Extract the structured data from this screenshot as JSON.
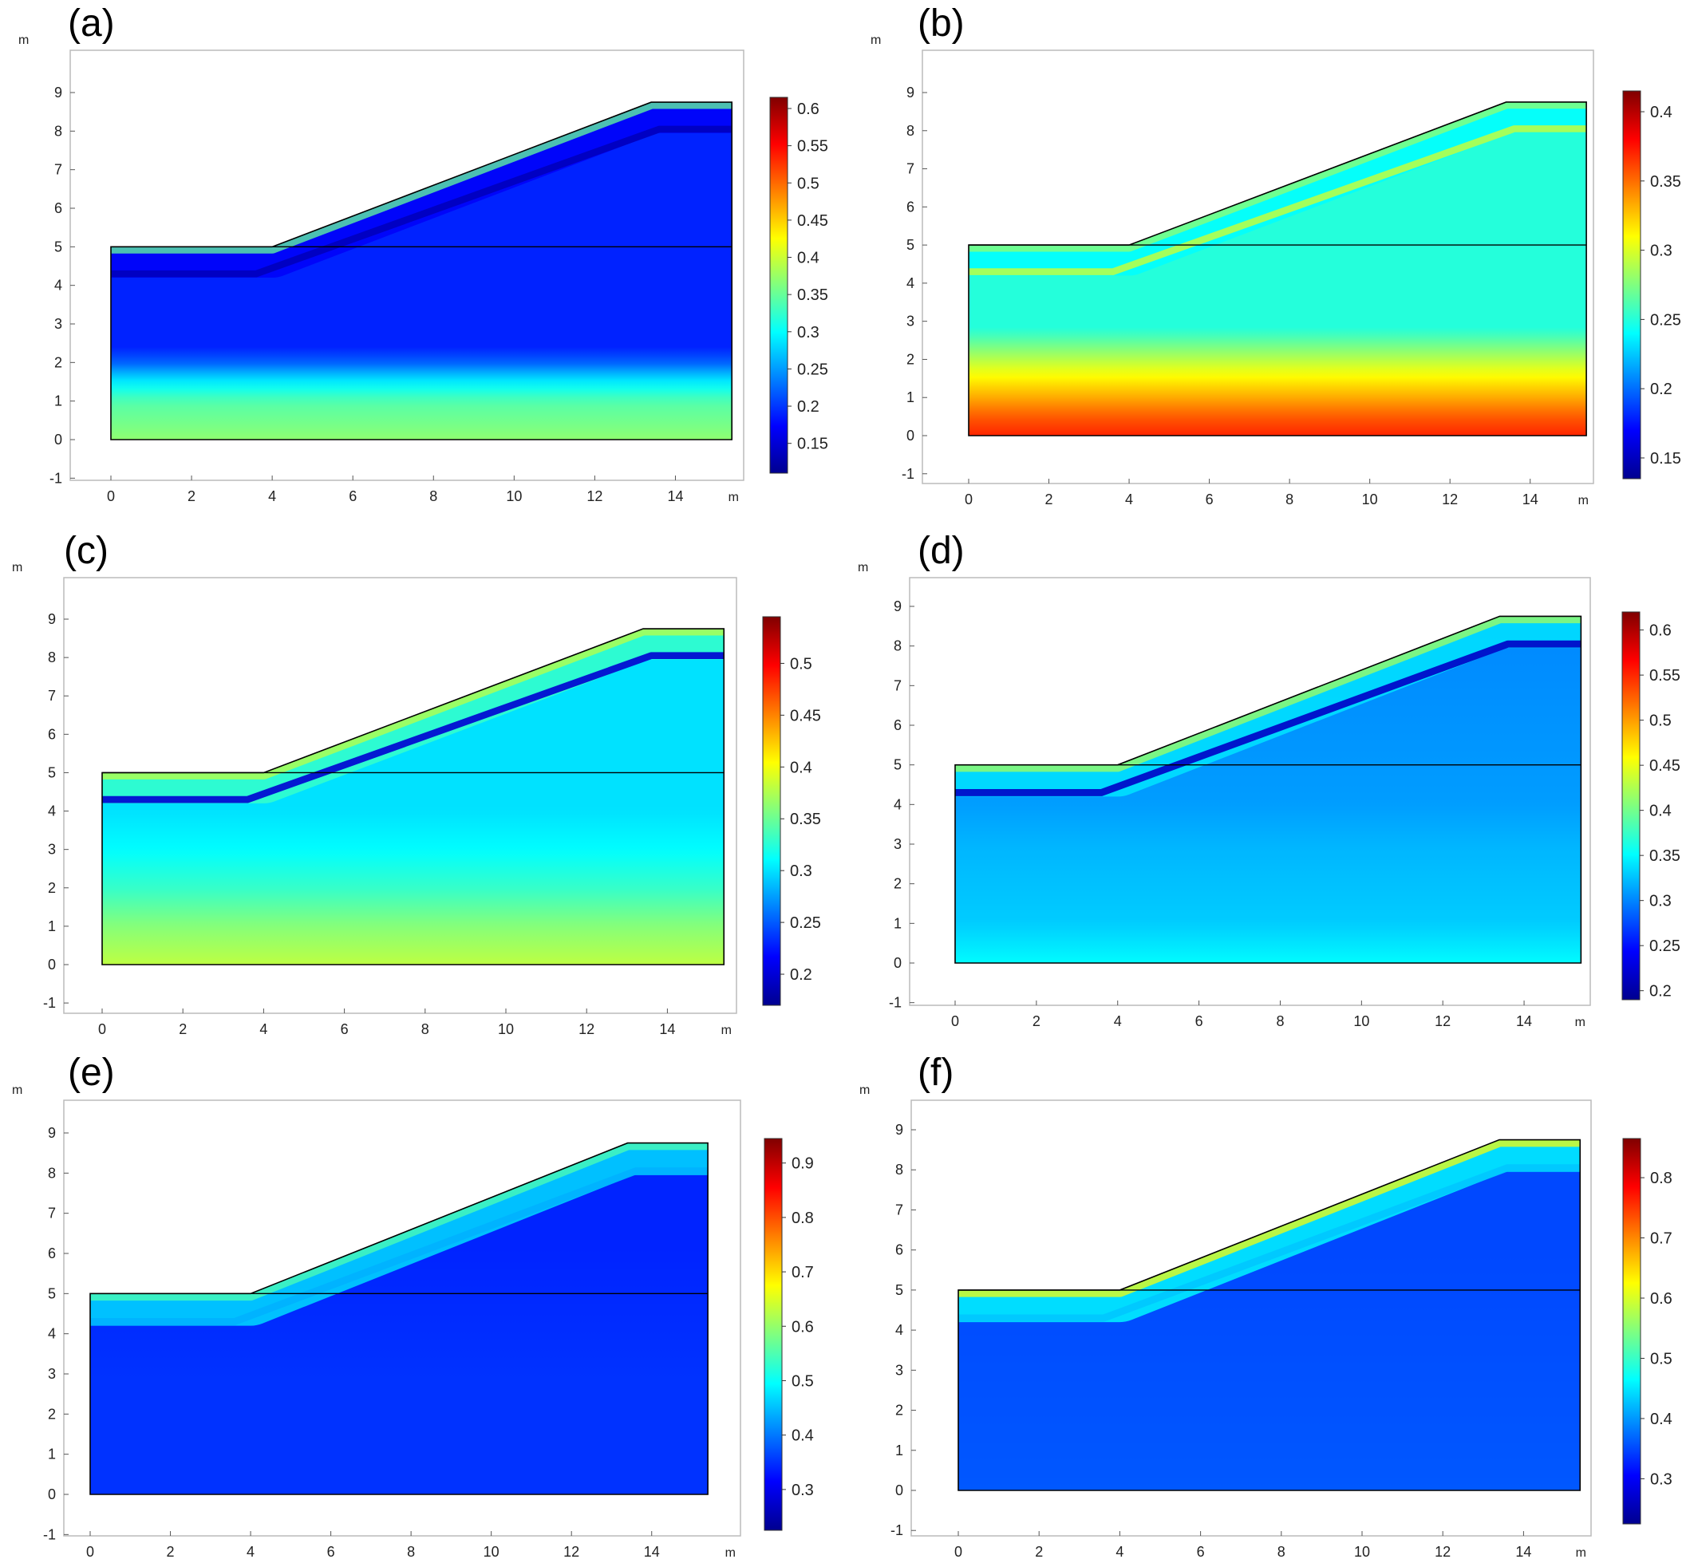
{
  "chart_data": [
    {
      "type": "heatmap",
      "label": "(a)",
      "x_unit": "m",
      "y_unit": "m",
      "xlim": [
        -1,
        16.5
      ],
      "ylim": [
        -1.1,
        9.9
      ],
      "x_ticks": [
        0,
        2,
        4,
        6,
        8,
        10,
        12,
        14
      ],
      "y_ticks": [
        -1,
        0,
        1,
        2,
        3,
        4,
        5,
        6,
        7,
        8,
        9
      ],
      "domain_outline": [
        [
          0,
          0
        ],
        [
          15.4,
          0
        ],
        [
          15.4,
          8.75
        ],
        [
          13.4,
          8.75
        ],
        [
          4,
          5
        ],
        [
          0,
          5
        ]
      ],
      "layer_boundary_y": 5,
      "colorbar": {
        "min": 0.11,
        "max": 0.615,
        "ticks": [
          0.15,
          0.2,
          0.25,
          0.3,
          0.35,
          0.4,
          0.45,
          0.5,
          0.55,
          0.6
        ]
      },
      "field": {
        "vertical_profile": [
          [
            0,
            0.37
          ],
          [
            1.0,
            0.34
          ],
          [
            1.6,
            0.28
          ],
          [
            2.0,
            0.22
          ],
          [
            2.4,
            0.19
          ],
          [
            5,
            0.19
          ],
          [
            9,
            0.19
          ]
        ],
        "surface_band_value": 0.17,
        "surface_highlight_value": 0.35,
        "failure_line_value": 0.14
      }
    },
    {
      "type": "heatmap",
      "label": "(b)",
      "x_unit": "m",
      "y_unit": "m",
      "xlim": [
        -1,
        16.5
      ],
      "ylim": [
        -1.1,
        9.9
      ],
      "x_ticks": [
        0,
        2,
        4,
        6,
        8,
        10,
        12,
        14
      ],
      "y_ticks": [
        -1,
        0,
        1,
        2,
        3,
        4,
        5,
        6,
        7,
        8,
        9
      ],
      "domain_outline": [
        [
          0,
          0
        ],
        [
          15.4,
          0
        ],
        [
          15.4,
          8.75
        ],
        [
          13.4,
          8.75
        ],
        [
          4,
          5
        ],
        [
          0,
          5
        ]
      ],
      "layer_boundary_y": 5,
      "colorbar": {
        "min": 0.135,
        "max": 0.415,
        "ticks": [
          0.15,
          0.2,
          0.25,
          0.3,
          0.35,
          0.4
        ]
      },
      "field": {
        "vertical_profile": [
          [
            0,
            0.37
          ],
          [
            0.5,
            0.355
          ],
          [
            1.2,
            0.325
          ],
          [
            1.8,
            0.3
          ],
          [
            2.3,
            0.275
          ],
          [
            2.8,
            0.25
          ],
          [
            5,
            0.25
          ],
          [
            9,
            0.25
          ]
        ],
        "surface_band_value": 0.24,
        "surface_highlight_value": 0.28,
        "failure_line_value": 0.29
      }
    },
    {
      "type": "heatmap",
      "label": "(c)",
      "x_unit": "m",
      "y_unit": "m",
      "xlim": [
        -1,
        16.5
      ],
      "ylim": [
        -1.1,
        9.9
      ],
      "x_ticks": [
        0,
        2,
        4,
        6,
        8,
        10,
        12,
        14
      ],
      "y_ticks": [
        -1,
        0,
        1,
        2,
        3,
        4,
        5,
        6,
        7,
        8,
        9
      ],
      "domain_outline": [
        [
          0,
          0
        ],
        [
          15.4,
          0
        ],
        [
          15.4,
          8.75
        ],
        [
          13.4,
          8.75
        ],
        [
          4,
          5
        ],
        [
          0,
          5
        ]
      ],
      "layer_boundary_y": 5,
      "colorbar": {
        "min": 0.17,
        "max": 0.545,
        "ticks": [
          0.2,
          0.25,
          0.3,
          0.35,
          0.4,
          0.45,
          0.5
        ]
      },
      "field": {
        "vertical_profile": [
          [
            0,
            0.38
          ],
          [
            1.0,
            0.36
          ],
          [
            2.0,
            0.33
          ],
          [
            3.0,
            0.31
          ],
          [
            4.0,
            0.3
          ],
          [
            9,
            0.3
          ]
        ],
        "surface_band_value": 0.33,
        "surface_highlight_value": 0.38,
        "failure_line_value": 0.2
      }
    },
    {
      "type": "heatmap",
      "label": "(d)",
      "x_unit": "m",
      "y_unit": "m",
      "xlim": [
        -1,
        16.5
      ],
      "ylim": [
        -1.1,
        9.9
      ],
      "x_ticks": [
        0,
        2,
        4,
        6,
        8,
        10,
        12,
        14
      ],
      "y_ticks": [
        -1,
        0,
        1,
        2,
        3,
        4,
        5,
        6,
        7,
        8,
        9
      ],
      "domain_outline": [
        [
          0,
          0
        ],
        [
          15.4,
          0
        ],
        [
          15.4,
          8.75
        ],
        [
          13.4,
          8.75
        ],
        [
          4,
          5
        ],
        [
          0,
          5
        ]
      ],
      "layer_boundary_y": 5,
      "colorbar": {
        "min": 0.19,
        "max": 0.62,
        "ticks": [
          0.2,
          0.25,
          0.3,
          0.35,
          0.4,
          0.45,
          0.5,
          0.55,
          0.6
        ]
      },
      "field": {
        "vertical_profile": [
          [
            0,
            0.35
          ],
          [
            1.0,
            0.33
          ],
          [
            2.0,
            0.325
          ],
          [
            3.0,
            0.32
          ],
          [
            4.0,
            0.31
          ],
          [
            9,
            0.3
          ]
        ],
        "surface_band_value": 0.34,
        "surface_highlight_value": 0.42,
        "failure_line_value": 0.22
      }
    },
    {
      "type": "heatmap",
      "label": "(e)",
      "x_unit": "m",
      "y_unit": "m",
      "xlim": [
        -1,
        16.5
      ],
      "ylim": [
        -1.1,
        9.9
      ],
      "x_ticks": [
        0,
        2,
        4,
        6,
        8,
        10,
        12,
        14
      ],
      "y_ticks": [
        -1,
        0,
        1,
        2,
        3,
        4,
        5,
        6,
        7,
        8,
        9
      ],
      "domain_outline": [
        [
          0,
          0
        ],
        [
          15.4,
          0
        ],
        [
          15.4,
          8.75
        ],
        [
          13.4,
          8.75
        ],
        [
          4,
          5
        ],
        [
          0,
          5
        ]
      ],
      "layer_boundary_y": 5,
      "colorbar": {
        "min": 0.225,
        "max": 0.945,
        "ticks": [
          0.3,
          0.4,
          0.5,
          0.6,
          0.7,
          0.8,
          0.9
        ]
      },
      "field": {
        "vertical_profile": [
          [
            0,
            0.35
          ],
          [
            3,
            0.35
          ],
          [
            6,
            0.34
          ],
          [
            9,
            0.34
          ]
        ],
        "surface_band_value": 0.47,
        "surface_highlight_value": 0.55,
        "failure_line_value": 0.44
      }
    },
    {
      "type": "heatmap",
      "label": "(f)",
      "x_unit": "m",
      "y_unit": "m",
      "xlim": [
        -1,
        16.5
      ],
      "ylim": [
        -1.1,
        9.9
      ],
      "x_ticks": [
        0,
        2,
        4,
        6,
        8,
        10,
        12,
        14
      ],
      "y_ticks": [
        -1,
        0,
        1,
        2,
        3,
        4,
        5,
        6,
        7,
        8,
        9
      ],
      "domain_outline": [
        [
          0,
          0
        ],
        [
          15.4,
          0
        ],
        [
          15.4,
          8.75
        ],
        [
          13.4,
          8.75
        ],
        [
          4,
          5
        ],
        [
          0,
          5
        ]
      ],
      "layer_boundary_y": 5,
      "colorbar": {
        "min": 0.225,
        "max": 0.865,
        "ticks": [
          0.3,
          0.4,
          0.5,
          0.6,
          0.7,
          0.8
        ]
      },
      "field": {
        "vertical_profile": [
          [
            0,
            0.36
          ],
          [
            3,
            0.355
          ],
          [
            6,
            0.35
          ],
          [
            9,
            0.35
          ]
        ],
        "surface_band_value": 0.46,
        "surface_highlight_value": 0.62,
        "failure_line_value": 0.43
      }
    }
  ]
}
